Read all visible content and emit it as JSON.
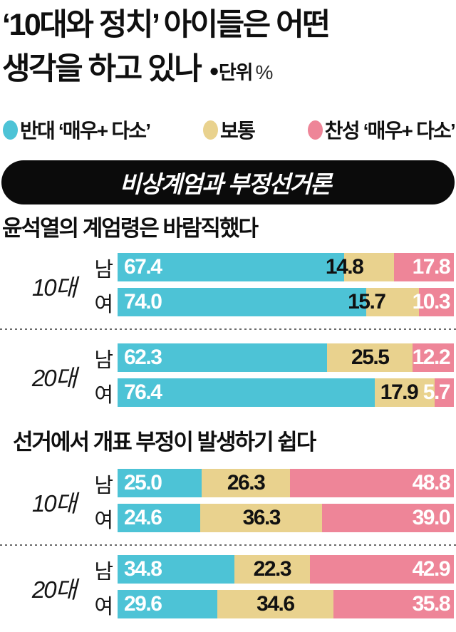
{
  "page": {
    "background": "#ffffff"
  },
  "title": {
    "line1": "‘10대와 정치’ 아이들은 어떤",
    "line2": "생각을 하고 있나",
    "unit_bullet": "●",
    "unit_label": "단위",
    "unit_percent": "%"
  },
  "legend": {
    "items": [
      {
        "name": "oppose",
        "label": "반대 ‘매우+ 다소’",
        "color": "#4dc3d6"
      },
      {
        "name": "neutral",
        "label": "보통",
        "color": "#e9d28e"
      },
      {
        "name": "favor",
        "label": "찬성 ‘매우+ 다소’",
        "color": "#ee8598"
      }
    ]
  },
  "banner": {
    "label": "비상계엄과 부정선거론",
    "background": "#0b0b0b",
    "text_color": "#ffffff"
  },
  "colors": {
    "oppose": "#4dc3d6",
    "neutral": "#e9d28e",
    "favor": "#ee8598",
    "value_dark": "#111111",
    "value_light": "#ffffff"
  },
  "chart_data": [
    {
      "type": "bar",
      "stacked": true,
      "orientation": "horizontal",
      "unit": "%",
      "xlim": [
        0,
        100
      ],
      "grid": false,
      "legend_position": "top",
      "title": "윤석열의 계엄령은 바람직했다",
      "categories": [
        "10대 남",
        "10대 여",
        "20대 남",
        "20대 여"
      ],
      "row_groups": [
        {
          "label": "10대",
          "row_indexes": [
            0,
            1
          ]
        },
        {
          "label": "20대",
          "row_indexes": [
            2,
            3
          ]
        }
      ],
      "row_labels": [
        "남",
        "여",
        "남",
        "여"
      ],
      "series": [
        {
          "name": "반대 ‘매우+ 다소’",
          "color": "#4dc3d6",
          "values": [
            67.4,
            74.0,
            62.3,
            76.4
          ]
        },
        {
          "name": "보통",
          "color": "#e9d28e",
          "values": [
            14.8,
            15.7,
            25.5,
            17.9
          ]
        },
        {
          "name": "찬성 ‘매우+ 다소’",
          "color": "#ee8598",
          "values": [
            17.8,
            10.3,
            12.2,
            5.7
          ]
        }
      ]
    },
    {
      "type": "bar",
      "stacked": true,
      "orientation": "horizontal",
      "unit": "%",
      "xlim": [
        0,
        100
      ],
      "grid": false,
      "legend_position": "top",
      "title": "선거에서 개표 부정이 발생하기 쉽다",
      "categories": [
        "10대 남",
        "10대 여",
        "20대 남",
        "20대 여"
      ],
      "row_groups": [
        {
          "label": "10대",
          "row_indexes": [
            0,
            1
          ]
        },
        {
          "label": "20대",
          "row_indexes": [
            2,
            3
          ]
        }
      ],
      "row_labels": [
        "남",
        "여",
        "남",
        "여"
      ],
      "series": [
        {
          "name": "반대 ‘매우+ 다소’",
          "color": "#4dc3d6",
          "values": [
            25.0,
            24.6,
            34.8,
            29.6
          ]
        },
        {
          "name": "보통",
          "color": "#e9d28e",
          "values": [
            26.3,
            36.3,
            22.3,
            34.6
          ]
        },
        {
          "name": "찬성 ‘매우+ 다소’",
          "color": "#ee8598",
          "values": [
            48.8,
            39.0,
            42.9,
            35.8
          ]
        }
      ]
    }
  ]
}
